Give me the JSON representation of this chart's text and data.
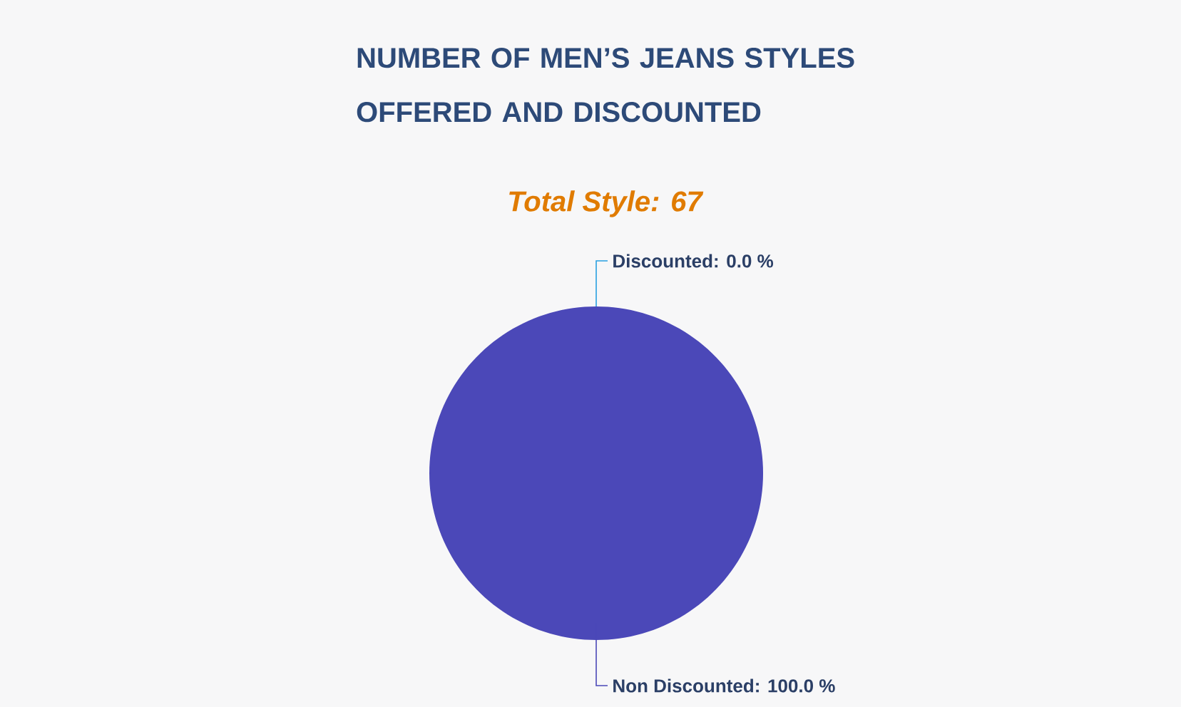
{
  "chart_data": {
    "type": "pie",
    "title": "NUMBER OF MEN’S JEANS STYLES OFFERED AND DISCOUNTED",
    "subtitle": "Total Style: 67",
    "categories": [
      "Discounted",
      "Non Discounted"
    ],
    "values": [
      0,
      100
    ],
    "colors": [
      "#29a0e0",
      "#4b48b8"
    ],
    "value_labels": [
      ": 0.0 %",
      ": 100.0 %"
    ]
  }
}
